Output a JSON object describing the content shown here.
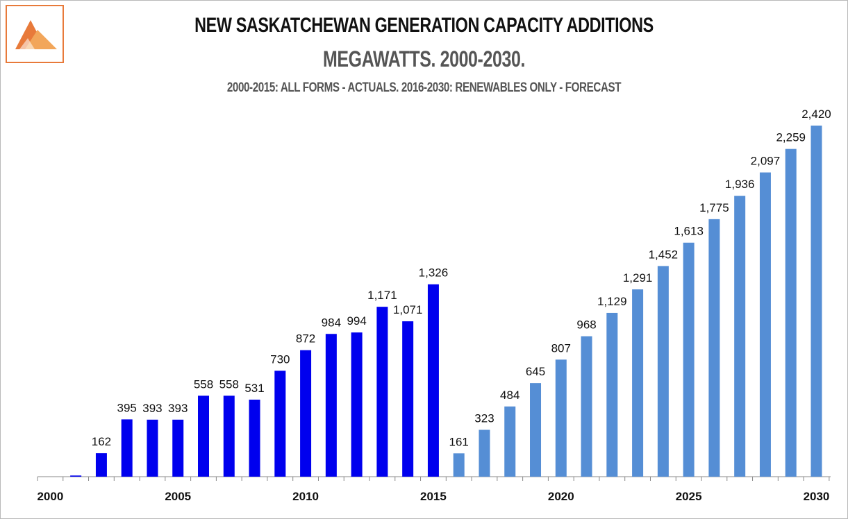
{
  "title": "NEW SASKATCHEWAN GENERATION CAPACITY  ADDITIONS",
  "subtitle": "MEGAWATTS. 2000-2030.",
  "note": "2000-2015: ALL FORMS - ACTUALS. 2016-2030: RENEWABLES ONLY - FORECAST",
  "logo": {
    "icon": "triangle-mountain-logo-icon",
    "color": "#e87a3a",
    "color_light": "#f2a65a"
  },
  "chart_data": {
    "type": "bar",
    "title": "NEW SASKATCHEWAN GENERATION CAPACITY  ADDITIONS",
    "subtitle": "MEGAWATTS. 2000-2030.",
    "xlabel": "",
    "ylabel": "",
    "ylim": [
      0,
      2700
    ],
    "grid": false,
    "x_tick_labels": [
      "2000",
      "2005",
      "2010",
      "2015",
      "2020",
      "2025",
      "2030"
    ],
    "series": [
      {
        "name": "2000-2015: All forms - Actuals",
        "color": "#0000ee",
        "categories": [
          2000,
          2001,
          2002,
          2003,
          2004,
          2005,
          2006,
          2007,
          2008,
          2009,
          2010,
          2011,
          2012,
          2013,
          2014,
          2015
        ],
        "values": [
          0,
          8,
          162,
          395,
          393,
          393,
          558,
          558,
          531,
          730,
          872,
          984,
          994,
          1171,
          1071,
          1326
        ],
        "labels": [
          "",
          "",
          "162",
          "395",
          "393",
          "393",
          "558",
          "558",
          "531",
          "730",
          "872",
          "984",
          "994",
          "1,171",
          "1,071",
          "1,326"
        ]
      },
      {
        "name": "2016-2030: Renewables only - Forecast",
        "color": "#558ed5",
        "categories": [
          2016,
          2017,
          2018,
          2019,
          2020,
          2021,
          2022,
          2023,
          2024,
          2025,
          2026,
          2027,
          2028,
          2029,
          2030
        ],
        "values": [
          161,
          323,
          484,
          645,
          807,
          968,
          1129,
          1291,
          1452,
          1613,
          1775,
          1936,
          2097,
          2259,
          2420
        ],
        "labels": [
          "161",
          "323",
          "484",
          "645",
          "807",
          "968",
          "1,129",
          "1,291",
          "1,452",
          "1,613",
          "1,775",
          "1,936",
          "2,097",
          "2,259",
          "2,420"
        ]
      }
    ]
  }
}
